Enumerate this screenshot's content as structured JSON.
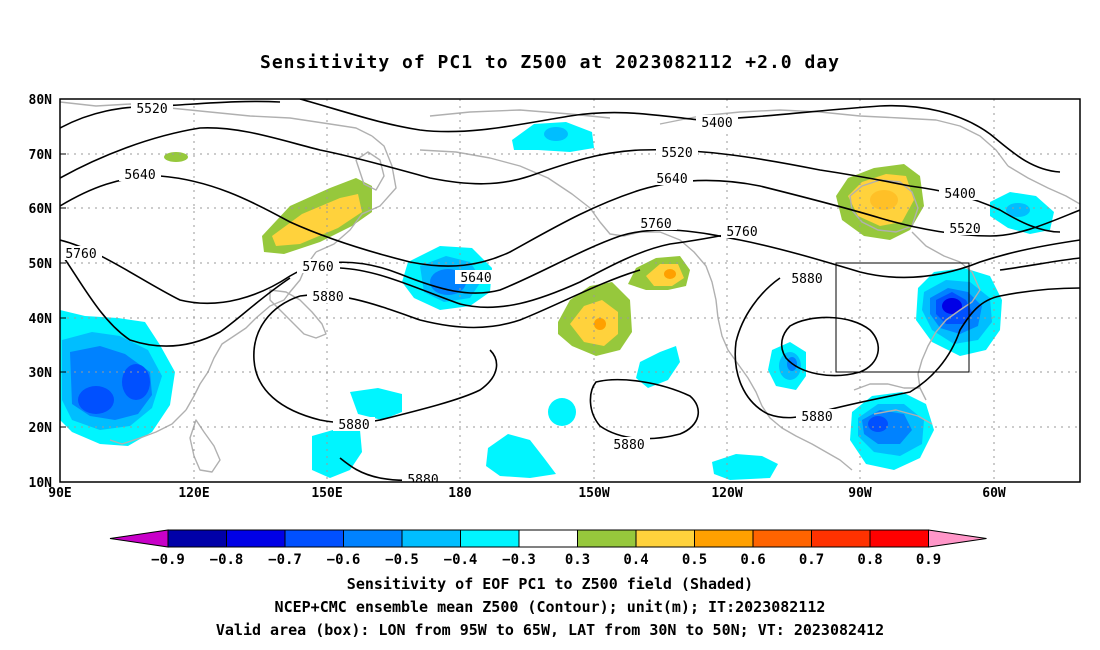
{
  "map": {
    "title": "Sensitivity of PC1 to Z500 at 2023082112 +2.0 day",
    "lat_labels": [
      "80N",
      "70N",
      "60N",
      "50N",
      "40N",
      "30N",
      "20N",
      "10N"
    ],
    "lon_labels": [
      "90E",
      "120E",
      "150E",
      "180",
      "150W",
      "120W",
      "90W",
      "60W"
    ],
    "contour_labels": [
      "5520",
      "5400",
      "5520",
      "5640",
      "5640",
      "5400",
      "5520",
      "5760",
      "5760",
      "5760",
      "5640",
      "5760",
      "5880",
      "5880",
      "5880",
      "5880",
      "5880",
      "5880"
    ],
    "valid_box": {
      "lon": [
        "95W",
        "65W"
      ],
      "lat": [
        "30N",
        "50N"
      ]
    }
  },
  "colorbar": {
    "colors": [
      "#c800c8",
      "#0000a8",
      "#0000e6",
      "#0050ff",
      "#0082ff",
      "#00beff",
      "#00f5ff",
      "#ffffff",
      "#96c83c",
      "#ffd23c",
      "#ffa000",
      "#ff6400",
      "#ff3200",
      "#ff0000",
      "#ff96c8"
    ],
    "ticks": [
      "−0.9",
      "−0.8",
      "−0.7",
      "−0.6",
      "−0.5",
      "−0.4",
      "−0.3",
      "0.3",
      "0.4",
      "0.5",
      "0.6",
      "0.7",
      "0.8",
      "0.9"
    ]
  },
  "caption": {
    "line1": "Sensitivity of EOF PC1 to Z500 field (Shaded)",
    "line2": "NCEP+CMC ensemble mean Z500 (Contour); unit(m); IT:2023082112",
    "line3": "Valid area (box): LON from 95W to 65W, LAT from 30N to 50N; VT: 2023082412"
  }
}
